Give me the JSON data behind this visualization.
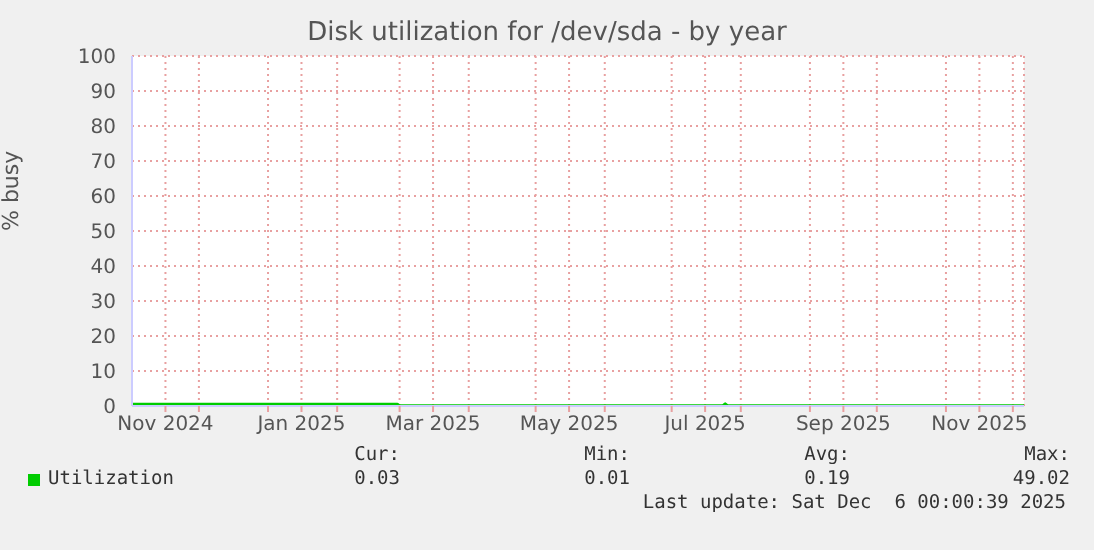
{
  "chart_data": {
    "type": "line",
    "title": "Disk utilization for /dev/sda - by year",
    "ylabel": "% busy",
    "x": [
      "2024-11-01",
      "2024-12-15",
      "2025-01-20",
      "2025-02-28",
      "2025-03-01",
      "2025-05-01",
      "2025-07-24",
      "2025-07-25",
      "2025-07-26",
      "2025-09-15",
      "2025-12-06"
    ],
    "series": [
      {
        "name": "Utilization",
        "color": "#00cc00",
        "values": [
          0.5,
          0.5,
          0.5,
          0.5,
          0.1,
          0.1,
          0.1,
          0.6,
          0.1,
          0.1,
          0.1
        ]
      }
    ],
    "xlim": [
      "2024-11-01",
      "2025-12-06"
    ],
    "xticks": [
      {
        "value": "2024-11-16",
        "label": "Nov 2024"
      },
      {
        "value": "2025-01-16",
        "label": "Jan 2025"
      },
      {
        "value": "2025-03-16",
        "label": "Mar 2025"
      },
      {
        "value": "2025-05-16",
        "label": "May 2025"
      },
      {
        "value": "2025-07-16",
        "label": "Jul 2025"
      },
      {
        "value": "2025-09-16",
        "label": "Sep 2025"
      },
      {
        "value": "2025-11-16",
        "label": "Nov 2025"
      },
      {
        "value": "2024-12-01",
        "label": null
      },
      {
        "value": "2025-01-01",
        "label": null
      },
      {
        "value": "2025-02-01",
        "label": null
      },
      {
        "value": "2025-03-01",
        "label": null
      },
      {
        "value": "2025-04-01",
        "label": null
      },
      {
        "value": "2025-05-01",
        "label": null
      },
      {
        "value": "2025-06-01",
        "label": null
      },
      {
        "value": "2025-07-01",
        "label": null
      },
      {
        "value": "2025-08-01",
        "label": null
      },
      {
        "value": "2025-09-01",
        "label": null
      },
      {
        "value": "2025-10-01",
        "label": null
      },
      {
        "value": "2025-11-01",
        "label": null
      },
      {
        "value": "2025-12-01",
        "label": null
      }
    ],
    "ylim": [
      0,
      100
    ],
    "yticks": [
      0,
      10,
      20,
      30,
      40,
      50,
      60,
      70,
      80,
      90,
      100
    ],
    "grid": true,
    "legend": "bottom",
    "marker": "none",
    "line_style": "solid",
    "annotations": [
      "Cur:",
      "Min:",
      "Avg:",
      "Max:",
      "0.03",
      "0.01",
      "0.19",
      "49.02",
      "Last update: Sat Dec  6 00:00:39 2025"
    ]
  }
}
